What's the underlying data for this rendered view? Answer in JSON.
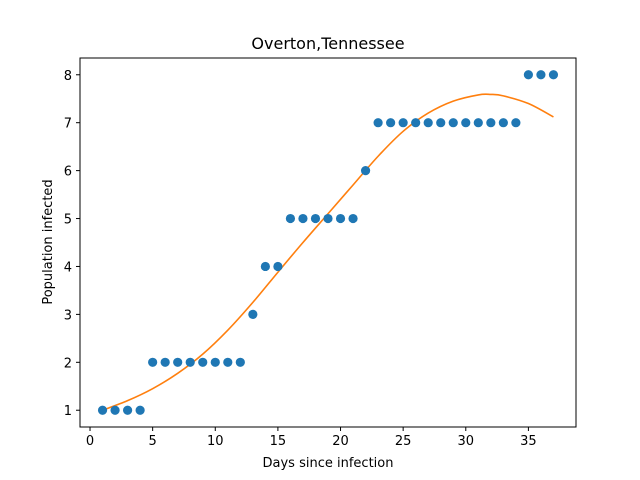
{
  "chart_data": {
    "type": "scatter",
    "title": "Overton,Tennessee",
    "xlabel": "Days since infection",
    "ylabel": "Population infected",
    "xlim": [
      -0.8,
      38.8
    ],
    "ylim": [
      0.65,
      8.35
    ],
    "xticks": [
      0,
      5,
      10,
      15,
      20,
      25,
      30,
      35
    ],
    "yticks": [
      1,
      2,
      3,
      4,
      5,
      6,
      7,
      8
    ],
    "grid": false,
    "scatter_color": "#1f77b4",
    "fit_color": "#ff7f0e",
    "points": {
      "x": [
        1,
        2,
        3,
        4,
        5,
        6,
        7,
        8,
        9,
        10,
        11,
        12,
        13,
        14,
        15,
        16,
        17,
        18,
        19,
        20,
        21,
        22,
        23,
        24,
        25,
        26,
        27,
        28,
        29,
        30,
        31,
        32,
        33,
        34,
        35,
        36,
        37
      ],
      "y": [
        1,
        1,
        1,
        1,
        2,
        2,
        2,
        2,
        2,
        2,
        2,
        2,
        3,
        4,
        4,
        5,
        5,
        5,
        5,
        5,
        5,
        6,
        7,
        7,
        7,
        7,
        7,
        7,
        7,
        7,
        7,
        7,
        7,
        7,
        8,
        8,
        8
      ]
    },
    "fit_curve": {
      "x": [
        1,
        3,
        5,
        7,
        9,
        11,
        13,
        15,
        17,
        19,
        21,
        23,
        25,
        27,
        29,
        31,
        32,
        33,
        35,
        37
      ],
      "y": [
        1.0,
        1.2,
        1.45,
        1.77,
        2.17,
        2.67,
        3.25,
        3.88,
        4.5,
        5.1,
        5.7,
        6.3,
        6.82,
        7.2,
        7.45,
        7.58,
        7.59,
        7.56,
        7.4,
        7.12
      ]
    }
  }
}
